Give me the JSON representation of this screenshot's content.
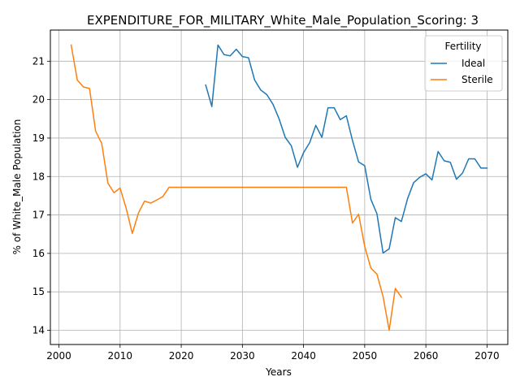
{
  "chart_data": {
    "type": "line",
    "title": "EXPENDITURE_FOR_MILITARY_White_Male_Population_Scoring: 3",
    "xlabel": "Years",
    "ylabel": "% of White_Male Population",
    "xlim": [
      1998.6,
      2073.4
    ],
    "ylim": [
      13.63,
      21.81
    ],
    "xticks": [
      2000,
      2010,
      2020,
      2030,
      2040,
      2050,
      2060,
      2070
    ],
    "yticks": [
      14,
      15,
      16,
      17,
      18,
      19,
      20,
      21
    ],
    "grid": true,
    "legend": {
      "title": "Fertility",
      "position": "top-right"
    },
    "series": [
      {
        "name": "Ideal",
        "color": "#1f77b4",
        "x": [
          2024,
          2025,
          2026,
          2027,
          2028,
          2029,
          2030,
          2031,
          2032,
          2033,
          2034,
          2035,
          2036,
          2037,
          2038,
          2039,
          2040,
          2041,
          2042,
          2043,
          2044,
          2045,
          2046,
          2047,
          2048,
          2049,
          2050,
          2051,
          2052,
          2053,
          2054,
          2055,
          2056,
          2057,
          2058,
          2059,
          2060,
          2061,
          2062,
          2063,
          2064,
          2065,
          2066,
          2067,
          2068,
          2069,
          2070
        ],
        "y": [
          20.38,
          19.82,
          21.42,
          21.17,
          21.14,
          21.31,
          21.12,
          21.09,
          20.51,
          20.25,
          20.13,
          19.88,
          19.5,
          19.02,
          18.8,
          18.24,
          18.62,
          18.88,
          19.33,
          19.02,
          19.79,
          19.79,
          19.48,
          19.58,
          18.94,
          18.38,
          18.28,
          17.41,
          17.03,
          16.01,
          16.12,
          16.93,
          16.83,
          17.42,
          17.84,
          17.98,
          18.07,
          17.91,
          18.65,
          18.41,
          18.37,
          17.93,
          18.09,
          18.46,
          18.46,
          18.22,
          18.22
        ]
      },
      {
        "name": "Sterile",
        "color": "#ff7f0e",
        "x": [
          2002,
          2003,
          2004,
          2005,
          2006,
          2007,
          2008,
          2009,
          2010,
          2011,
          2012,
          2013,
          2014,
          2015,
          2016,
          2017,
          2018,
          2019,
          2020,
          2021,
          2022,
          2023,
          2024,
          2025,
          2026,
          2027,
          2028,
          2029,
          2030,
          2031,
          2032,
          2033,
          2034,
          2035,
          2036,
          2037,
          2038,
          2039,
          2040,
          2041,
          2042,
          2043,
          2044,
          2045,
          2046,
          2047,
          2048,
          2049,
          2050,
          2051,
          2052,
          2053,
          2054,
          2055,
          2056
        ],
        "y": [
          21.42,
          20.51,
          20.33,
          20.29,
          19.18,
          18.86,
          17.83,
          17.58,
          17.7,
          17.17,
          16.52,
          17.05,
          17.36,
          17.31,
          17.39,
          17.48,
          17.72,
          17.72,
          17.72,
          17.72,
          17.72,
          17.72,
          17.72,
          17.72,
          17.72,
          17.72,
          17.72,
          17.72,
          17.72,
          17.72,
          17.72,
          17.72,
          17.72,
          17.72,
          17.72,
          17.72,
          17.72,
          17.72,
          17.72,
          17.72,
          17.72,
          17.72,
          17.72,
          17.72,
          17.72,
          17.72,
          16.79,
          17.02,
          16.18,
          15.62,
          15.46,
          14.88,
          14.0,
          15.09,
          14.86
        ]
      }
    ]
  }
}
